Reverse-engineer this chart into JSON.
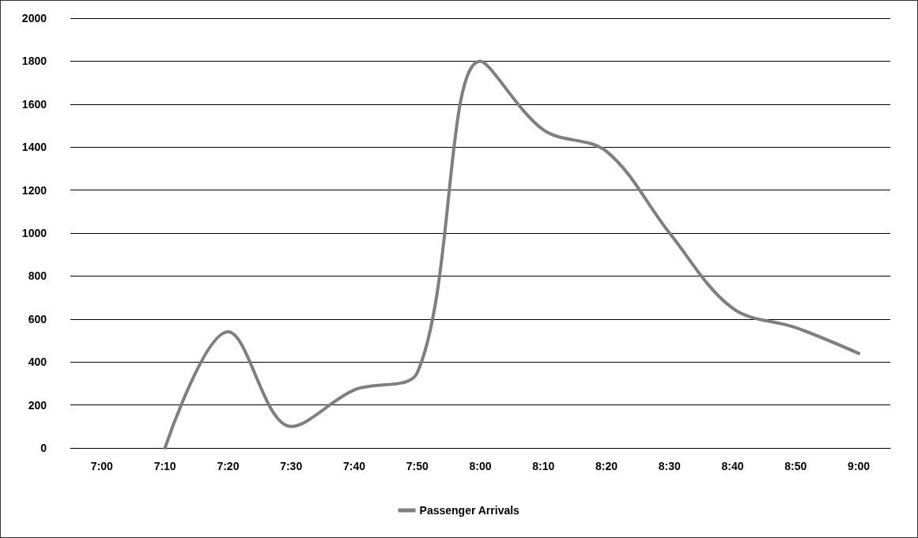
{
  "chart_data": {
    "type": "line",
    "categories": [
      "7:00",
      "7:10",
      "7:20",
      "7:30",
      "7:40",
      "7:50",
      "8:00",
      "8:10",
      "8:20",
      "8:30",
      "8:40",
      "8:50",
      "9:00"
    ],
    "series": [
      {
        "name": "Passenger Arrivals",
        "color": "#7f7f7f",
        "values": [
          null,
          0,
          540,
          100,
          270,
          350,
          1800,
          1480,
          1380,
          1000,
          650,
          560,
          440
        ]
      }
    ],
    "ylim": [
      0,
      2000
    ],
    "yticks": [
      0,
      200,
      400,
      600,
      800,
      1000,
      1200,
      1400,
      1600,
      1800,
      2000
    ],
    "grid": "y",
    "legend": "bottom",
    "marker": "none",
    "line_style": "solid"
  }
}
